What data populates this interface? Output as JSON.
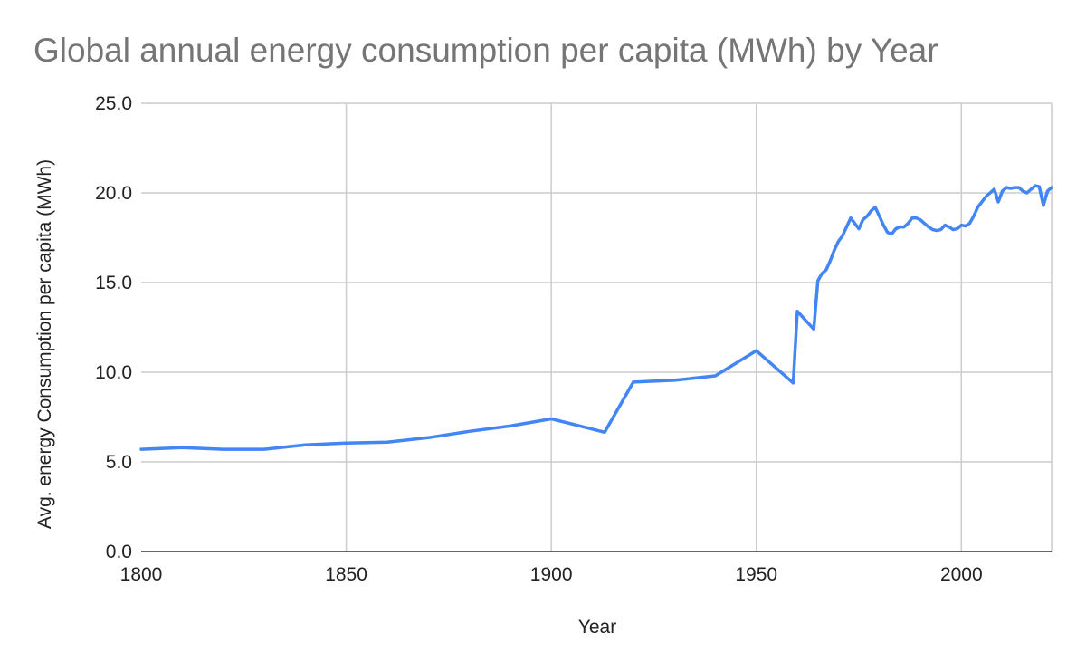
{
  "chart_data": {
    "type": "line",
    "title": "Global annual energy consumption per capita (MWh) by Year",
    "xlabel": "Year",
    "ylabel": "Avg. energy Consumption per capita (MWh)",
    "xlim": [
      1800,
      2022
    ],
    "ylim": [
      0,
      25
    ],
    "x_ticks": [
      1800,
      1850,
      1900,
      1950,
      2000
    ],
    "y_ticks": [
      "0.0",
      "5.0",
      "10.0",
      "15.0",
      "20.0",
      "25.0"
    ],
    "grid": true,
    "color": "#4285f4",
    "series": [
      {
        "name": "Avg. energy Consumption per capita (MWh)",
        "x": [
          1800,
          1810,
          1820,
          1830,
          1840,
          1850,
          1860,
          1870,
          1880,
          1890,
          1900,
          1913,
          1920,
          1930,
          1940,
          1950,
          1959,
          1960,
          1964,
          1965,
          1966,
          1967,
          1968,
          1969,
          1970,
          1971,
          1972,
          1973,
          1974,
          1975,
          1976,
          1977,
          1978,
          1979,
          1980,
          1981,
          1982,
          1983,
          1984,
          1985,
          1986,
          1987,
          1988,
          1989,
          1990,
          1991,
          1992,
          1993,
          1994,
          1995,
          1996,
          1997,
          1998,
          1999,
          2000,
          2001,
          2002,
          2003,
          2004,
          2005,
          2006,
          2007,
          2008,
          2009,
          2010,
          2011,
          2012,
          2013,
          2014,
          2015,
          2016,
          2017,
          2018,
          2019,
          2020,
          2021,
          2022
        ],
        "values": [
          5.7,
          5.8,
          5.7,
          5.7,
          5.95,
          6.05,
          6.1,
          6.35,
          6.7,
          7.0,
          7.4,
          6.65,
          9.45,
          9.55,
          9.8,
          11.2,
          9.4,
          13.4,
          12.4,
          15.1,
          15.5,
          15.7,
          16.2,
          16.8,
          17.3,
          17.6,
          18.1,
          18.6,
          18.3,
          18.0,
          18.5,
          18.7,
          19.0,
          19.2,
          18.7,
          18.2,
          17.8,
          17.7,
          18.0,
          18.1,
          18.1,
          18.3,
          18.6,
          18.6,
          18.5,
          18.3,
          18.1,
          17.95,
          17.9,
          17.95,
          18.2,
          18.1,
          17.95,
          18.0,
          18.2,
          18.15,
          18.3,
          18.7,
          19.2,
          19.5,
          19.8,
          20.0,
          20.2,
          19.5,
          20.1,
          20.3,
          20.25,
          20.3,
          20.3,
          20.1,
          20.0,
          20.2,
          20.4,
          20.35,
          19.3,
          20.1,
          20.3
        ]
      }
    ]
  }
}
